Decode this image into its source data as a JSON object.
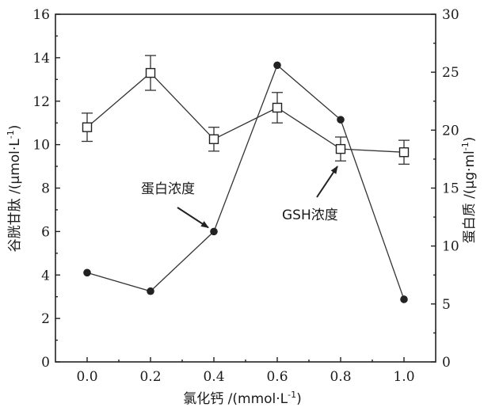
{
  "chart_data": {
    "type": "line",
    "xlabel": "氯化钙 /(mmol·L",
    "xlabel_sup": "-1",
    "xlabel_end": ")",
    "ylabel_left": "谷胱甘肽 /(μmol·L",
    "ylabel_left_sup": "-1",
    "ylabel_left_end": ")",
    "ylabel_right": "蛋白质 /(μg·ml",
    "ylabel_right_sup": "-1",
    "ylabel_right_end": ")",
    "x": [
      0.0,
      0.2,
      0.4,
      0.6,
      0.8,
      1.0
    ],
    "x_tick_labels": [
      "0.0",
      "0.2",
      "0.4",
      "0.6",
      "0.8",
      "1.0"
    ],
    "xlim": [
      -0.1,
      1.1
    ],
    "ylim_left": [
      0,
      16
    ],
    "ylim_right": [
      0,
      30
    ],
    "y_left_ticks": [
      "0",
      "2",
      "4",
      "6",
      "8",
      "10",
      "12",
      "14",
      "16"
    ],
    "y_right_ticks": [
      "0",
      "5",
      "10",
      "15",
      "20",
      "25",
      "30"
    ],
    "series": [
      {
        "name": "GSH浓度",
        "axis": "left",
        "marker": "open-square",
        "values": [
          10.8,
          13.3,
          10.25,
          11.7,
          9.8,
          9.65
        ],
        "error": [
          0.65,
          0.8,
          0.55,
          0.7,
          0.55,
          0.55
        ]
      },
      {
        "name": "蛋白浓度",
        "axis": "right",
        "marker": "filled-circle",
        "values": [
          7.7,
          6.1,
          11.25,
          25.6,
          20.9,
          5.4
        ]
      }
    ],
    "annotations": [
      {
        "text": "蛋白浓度",
        "target_series": 1,
        "target_index": 2
      },
      {
        "text": "GSH浓度",
        "target_series": 0,
        "target_index": 4
      }
    ],
    "grid": false,
    "colors": {
      "ink": "#222222",
      "marker_fill": "#222222",
      "open_marker_fill": "#ffffff"
    }
  }
}
